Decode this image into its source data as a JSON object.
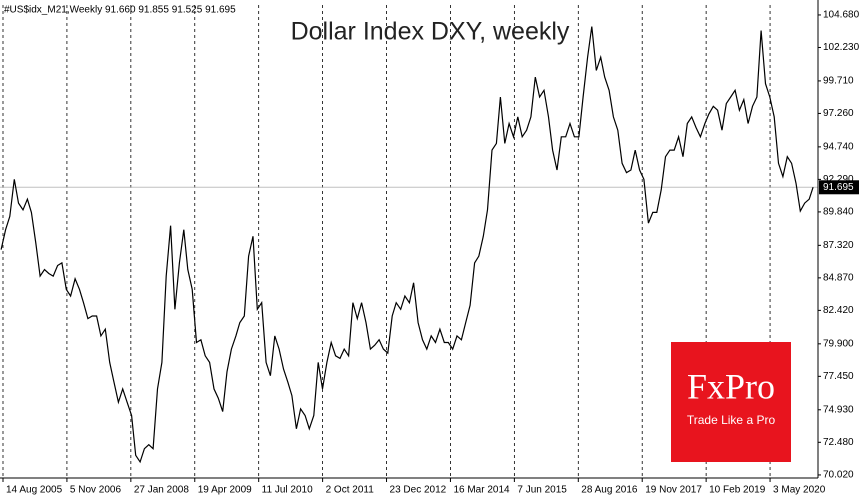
{
  "chart_data": {
    "type": "line",
    "title": "Dollar Index DXY, weekly",
    "header": "#US$idx_M21,Weekly  91.660 91.855 91.525 91.695",
    "last_price": 91.695,
    "brand": "FxPro",
    "slogan": "Trade Like a Pro",
    "color": "#000000",
    "xlim": [
      "2005-07-24",
      "2021-04-04"
    ],
    "xticks": [
      {
        "value": "2005-08-14",
        "label": "14 Aug 2005"
      },
      {
        "value": "2006-11-05",
        "label": "5 Nov 2006"
      },
      {
        "value": "2008-01-27",
        "label": "27 Jan 2008"
      },
      {
        "value": "2009-04-19",
        "label": "19 Apr 2009"
      },
      {
        "value": "2010-07-11",
        "label": "11 Jul 2010"
      },
      {
        "value": "2011-10-02",
        "label": "2 Oct 2011"
      },
      {
        "value": "2012-12-23",
        "label": "23 Dec 2012"
      },
      {
        "value": "2014-03-16",
        "label": "16 Mar 2014"
      },
      {
        "value": "2015-06-07",
        "label": "7 Jun 2015"
      },
      {
        "value": "2016-08-28",
        "label": "28 Aug 2016"
      },
      {
        "value": "2017-11-19",
        "label": "19 Nov 2017"
      },
      {
        "value": "2019-02-10",
        "label": "10 Feb 2019"
      },
      {
        "value": "2020-05-03",
        "label": "3 May 2020"
      }
    ],
    "ylim": [
      69.79,
      105.43
    ],
    "yticks": [
      {
        "value": 104.68,
        "label": "104.680"
      },
      {
        "value": 102.23,
        "label": "102.230"
      },
      {
        "value": 99.71,
        "label": "99.710"
      },
      {
        "value": 97.26,
        "label": "97.260"
      },
      {
        "value": 94.74,
        "label": "94.740"
      },
      {
        "value": 92.29,
        "label": "92.290"
      },
      {
        "value": 89.84,
        "label": "89.840"
      },
      {
        "value": 87.32,
        "label": "87.320"
      },
      {
        "value": 84.87,
        "label": "84.870"
      },
      {
        "value": 82.42,
        "label": "82.420"
      },
      {
        "value": 79.9,
        "label": "79.900"
      },
      {
        "value": 77.45,
        "label": "77.450"
      },
      {
        "value": 74.93,
        "label": "74.930"
      },
      {
        "value": 72.48,
        "label": "72.480"
      },
      {
        "value": 70.02,
        "label": "70.020"
      }
    ],
    "x": [
      "2005-08-01",
      "2005-09-01",
      "2005-10-01",
      "2005-11-01",
      "2005-12-01",
      "2006-01-01",
      "2006-02-01",
      "2006-03-01",
      "2006-04-01",
      "2006-05-01",
      "2006-06-01",
      "2006-07-01",
      "2006-08-01",
      "2006-09-01",
      "2006-10-01",
      "2006-11-01",
      "2006-12-01",
      "2007-01-01",
      "2007-02-01",
      "2007-03-01",
      "2007-04-01",
      "2007-05-01",
      "2007-06-01",
      "2007-07-01",
      "2007-08-01",
      "2007-09-01",
      "2007-10-01",
      "2007-11-01",
      "2007-12-01",
      "2008-01-01",
      "2008-02-01",
      "2008-03-01",
      "2008-04-01",
      "2008-05-01",
      "2008-06-01",
      "2008-07-01",
      "2008-08-01",
      "2008-09-01",
      "2008-10-01",
      "2008-11-01",
      "2008-12-01",
      "2009-01-01",
      "2009-02-01",
      "2009-03-01",
      "2009-04-01",
      "2009-05-01",
      "2009-06-01",
      "2009-07-01",
      "2009-08-01",
      "2009-09-01",
      "2009-10-01",
      "2009-11-01",
      "2009-12-01",
      "2010-01-01",
      "2010-02-01",
      "2010-03-01",
      "2010-04-01",
      "2010-05-01",
      "2010-06-01",
      "2010-07-01",
      "2010-08-01",
      "2010-09-01",
      "2010-10-01",
      "2010-11-01",
      "2010-12-01",
      "2011-01-01",
      "2011-02-01",
      "2011-03-01",
      "2011-04-01",
      "2011-05-01",
      "2011-06-01",
      "2011-07-01",
      "2011-08-01",
      "2011-09-01",
      "2011-10-01",
      "2011-11-01",
      "2011-12-01",
      "2012-01-01",
      "2012-02-01",
      "2012-03-01",
      "2012-04-01",
      "2012-05-01",
      "2012-06-01",
      "2012-07-01",
      "2012-08-01",
      "2012-09-01",
      "2012-10-01",
      "2012-11-01",
      "2012-12-01",
      "2013-01-01",
      "2013-02-01",
      "2013-03-01",
      "2013-04-01",
      "2013-05-01",
      "2013-06-01",
      "2013-07-01",
      "2013-08-01",
      "2013-09-01",
      "2013-10-01",
      "2013-11-01",
      "2013-12-01",
      "2014-01-01",
      "2014-02-01",
      "2014-03-01",
      "2014-04-01",
      "2014-05-01",
      "2014-06-01",
      "2014-07-01",
      "2014-08-01",
      "2014-09-01",
      "2014-10-01",
      "2014-11-01",
      "2014-12-01",
      "2015-01-01",
      "2015-02-01",
      "2015-03-01",
      "2015-04-01",
      "2015-05-01",
      "2015-06-01",
      "2015-07-01",
      "2015-08-01",
      "2015-09-01",
      "2015-10-01",
      "2015-11-01",
      "2015-12-01",
      "2016-01-01",
      "2016-02-01",
      "2016-03-01",
      "2016-04-01",
      "2016-05-01",
      "2016-06-01",
      "2016-07-01",
      "2016-08-01",
      "2016-09-01",
      "2016-10-01",
      "2016-11-01",
      "2016-12-01",
      "2017-01-01",
      "2017-02-01",
      "2017-03-01",
      "2017-04-01",
      "2017-05-01",
      "2017-06-01",
      "2017-07-01",
      "2017-08-01",
      "2017-09-01",
      "2017-10-01",
      "2017-11-01",
      "2017-12-01",
      "2018-01-01",
      "2018-02-01",
      "2018-03-01",
      "2018-04-01",
      "2018-05-01",
      "2018-06-01",
      "2018-07-01",
      "2018-08-01",
      "2018-09-01",
      "2018-10-01",
      "2018-11-01",
      "2018-12-01",
      "2019-01-01",
      "2019-02-01",
      "2019-03-01",
      "2019-04-01",
      "2019-05-01",
      "2019-06-01",
      "2019-07-01",
      "2019-08-01",
      "2019-09-01",
      "2019-10-01",
      "2019-11-01",
      "2019-12-01",
      "2020-01-01",
      "2020-02-01",
      "2020-03-01",
      "2020-04-01",
      "2020-05-01",
      "2020-06-01",
      "2020-07-01",
      "2020-08-01",
      "2020-09-01",
      "2020-10-01",
      "2020-11-01",
      "2020-12-01",
      "2021-01-01",
      "2021-02-01",
      "2021-03-01"
    ],
    "values": [
      87.0,
      88.5,
      89.5,
      92.3,
      90.5,
      90.0,
      90.8,
      89.8,
      87.5,
      85.0,
      85.5,
      85.2,
      85.0,
      85.8,
      86.0,
      84.0,
      83.5,
      84.8,
      84.0,
      83.0,
      81.8,
      82.0,
      82.0,
      80.5,
      81.0,
      78.5,
      77.0,
      75.5,
      76.5,
      75.5,
      74.5,
      71.5,
      71.0,
      72.0,
      72.3,
      72.0,
      76.5,
      78.5,
      85.0,
      88.8,
      82.5,
      86.0,
      88.5,
      85.5,
      84.0,
      80.0,
      80.2,
      79.0,
      78.5,
      76.5,
      75.8,
      74.8,
      77.8,
      79.5,
      80.5,
      81.5,
      82.0,
      86.5,
      88.0,
      82.5,
      83.0,
      78.5,
      77.5,
      80.5,
      79.5,
      78.0,
      77.0,
      76.0,
      73.5,
      75.0,
      74.5,
      73.5,
      74.5,
      78.5,
      76.5,
      78.5,
      80.0,
      79.0,
      78.8,
      79.5,
      79.0,
      83.0,
      81.8,
      83.0,
      81.5,
      79.5,
      79.8,
      80.2,
      79.5,
      79.2,
      82.0,
      83.0,
      82.5,
      83.5,
      83.0,
      84.5,
      81.5,
      80.2,
      79.5,
      80.5,
      80.0,
      81.0,
      80.0,
      80.0,
      79.5,
      80.5,
      80.2,
      81.5,
      82.8,
      86.0,
      86.5,
      88.0,
      90.0,
      94.5,
      95.0,
      98.5,
      95.0,
      96.5,
      95.5,
      97.0,
      95.5,
      96.0,
      97.0,
      100.0,
      98.5,
      99.0,
      97.0,
      94.5,
      93.0,
      95.5,
      95.5,
      96.5,
      95.5,
      95.5,
      98.5,
      101.5,
      103.8,
      100.5,
      101.5,
      100.0,
      99.0,
      97.0,
      96.0,
      93.5,
      92.8,
      93.0,
      94.5,
      93.0,
      92.3,
      89.0,
      89.8,
      89.8,
      91.5,
      94.0,
      94.5,
      94.5,
      95.5,
      94.0,
      96.5,
      97.0,
      96.2,
      95.5,
      96.5,
      97.2,
      97.8,
      97.5,
      96.0,
      98.0,
      98.5,
      99.0,
      97.5,
      98.3,
      96.5,
      97.8,
      98.5,
      103.5,
      99.5,
      98.5,
      97.0,
      93.5,
      92.5,
      94.0,
      93.5,
      92.0,
      89.9,
      90.5,
      90.8,
      91.7
    ]
  }
}
